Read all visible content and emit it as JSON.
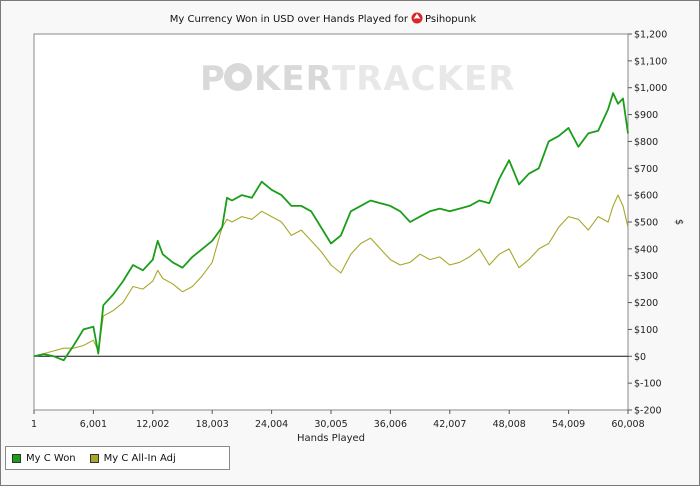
{
  "chart_data": {
    "type": "line",
    "title": "My Currency Won in USD over Hands Played for",
    "player": "Psihopunk",
    "watermark_left": "P",
    "watermark_right": "KER",
    "watermark_brand": "TRACKER",
    "xlabel": "Hands Played",
    "ylabel": "$",
    "xlim": [
      1,
      60008
    ],
    "ylim": [
      -200,
      1200
    ],
    "x_ticks": [
      "1",
      "6,001",
      "12,002",
      "18,003",
      "24,004",
      "30,005",
      "36,006",
      "42,007",
      "48,008",
      "54,009",
      "60,008"
    ],
    "y_ticks": [
      "$1,200",
      "$1,100",
      "$1,000",
      "$900",
      "$800",
      "$700",
      "$600",
      "$500",
      "$400",
      "$300",
      "$200",
      "$100",
      "$0",
      "$-100",
      "$-200"
    ],
    "series": [
      {
        "name": "My C Won",
        "color": "#1a9e1a",
        "x": [
          1,
          1000,
          2000,
          3000,
          4000,
          5000,
          6000,
          6500,
          7000,
          8000,
          9000,
          10000,
          11000,
          12000,
          12500,
          13000,
          14000,
          15000,
          16000,
          17000,
          18000,
          19000,
          19500,
          20000,
          21000,
          22000,
          23000,
          24000,
          25000,
          26000,
          27000,
          28000,
          29000,
          30000,
          31000,
          32000,
          33000,
          34000,
          35000,
          36000,
          37000,
          38000,
          39000,
          40000,
          41000,
          42000,
          43000,
          44000,
          45000,
          46000,
          47000,
          48000,
          49000,
          50000,
          51000,
          52000,
          53000,
          54000,
          55000,
          56000,
          57000,
          58000,
          58500,
          59000,
          59500,
          60008
        ],
        "y": [
          0,
          8,
          0,
          -15,
          40,
          100,
          110,
          10,
          190,
          230,
          280,
          340,
          320,
          360,
          430,
          380,
          350,
          330,
          370,
          400,
          430,
          480,
          590,
          580,
          600,
          590,
          650,
          620,
          600,
          560,
          560,
          540,
          480,
          420,
          450,
          540,
          560,
          580,
          570,
          560,
          540,
          500,
          520,
          540,
          550,
          540,
          550,
          560,
          580,
          570,
          660,
          730,
          640,
          680,
          700,
          800,
          820,
          850,
          780,
          830,
          840,
          920,
          980,
          940,
          960,
          830
        ]
      },
      {
        "name": "My C All-In Adj",
        "color": "#a8a82a",
        "x": [
          1,
          1000,
          2000,
          3000,
          4000,
          5000,
          6000,
          6500,
          7000,
          8000,
          9000,
          10000,
          11000,
          12000,
          12500,
          13000,
          14000,
          15000,
          16000,
          17000,
          18000,
          19000,
          19500,
          20000,
          21000,
          22000,
          23000,
          24000,
          25000,
          26000,
          27000,
          28000,
          29000,
          30000,
          31000,
          32000,
          33000,
          34000,
          35000,
          36000,
          37000,
          38000,
          39000,
          40000,
          41000,
          42000,
          43000,
          44000,
          45000,
          46000,
          47000,
          48000,
          49000,
          50000,
          51000,
          52000,
          53000,
          54000,
          55000,
          56000,
          57000,
          58000,
          58500,
          59000,
          59500,
          60008
        ],
        "y": [
          0,
          10,
          20,
          30,
          30,
          40,
          60,
          20,
          150,
          170,
          200,
          260,
          250,
          280,
          320,
          290,
          270,
          240,
          260,
          300,
          350,
          480,
          510,
          500,
          520,
          510,
          540,
          520,
          500,
          450,
          470,
          430,
          390,
          340,
          310,
          380,
          420,
          440,
          400,
          360,
          340,
          350,
          380,
          360,
          370,
          340,
          350,
          370,
          400,
          340,
          380,
          400,
          330,
          360,
          400,
          420,
          480,
          520,
          510,
          470,
          520,
          500,
          560,
          600,
          560,
          480
        ]
      }
    ],
    "zero_line": true,
    "grid": false,
    "legend_position": "bottom-left"
  }
}
